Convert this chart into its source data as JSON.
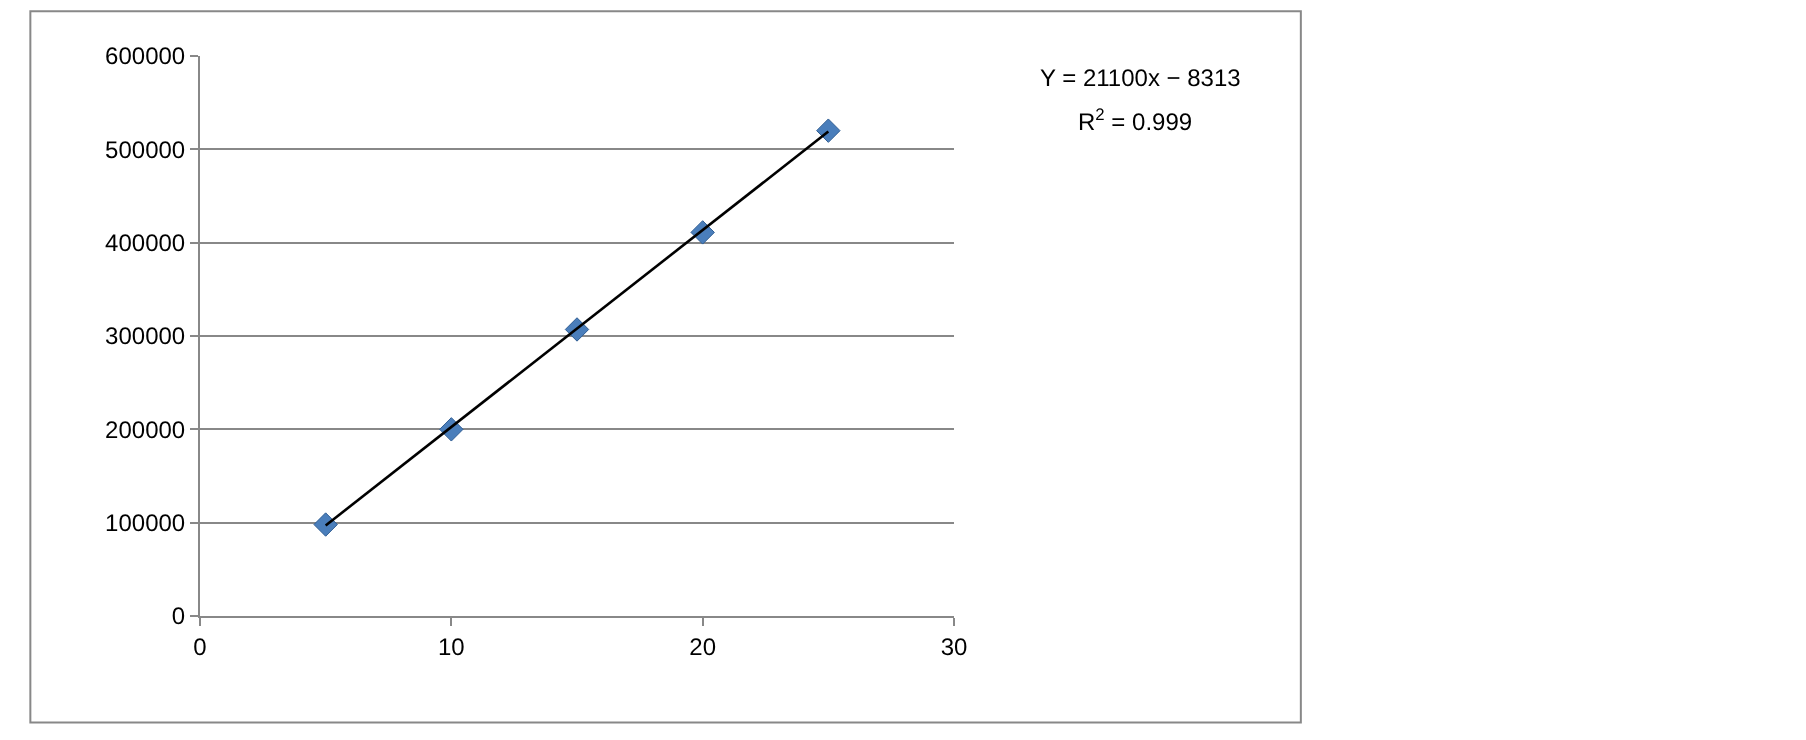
{
  "chart_data": {
    "type": "scatter",
    "x": [
      5,
      10,
      15,
      20,
      25
    ],
    "series": [
      {
        "color": "#4a7ebb",
        "values": [
          98000,
          200000,
          307000,
          411000,
          520000
        ],
        "marker": "diamond"
      },
      {
        "type": "line",
        "color": "#000000",
        "x": [
          5,
          25
        ],
        "values": [
          97000,
          519000
        ],
        "marker": "none"
      }
    ],
    "xlim": [
      0,
      30
    ],
    "xticks": [
      0,
      10,
      20,
      30
    ],
    "ylim": [
      0,
      600000
    ],
    "yticks": [
      0,
      100000,
      200000,
      300000,
      400000,
      500000,
      600000
    ],
    "grid": "y",
    "legend": false,
    "annotations": [
      "Y = 21100x − 8313",
      "R$^{2}$ = 0.999"
    ]
  }
}
